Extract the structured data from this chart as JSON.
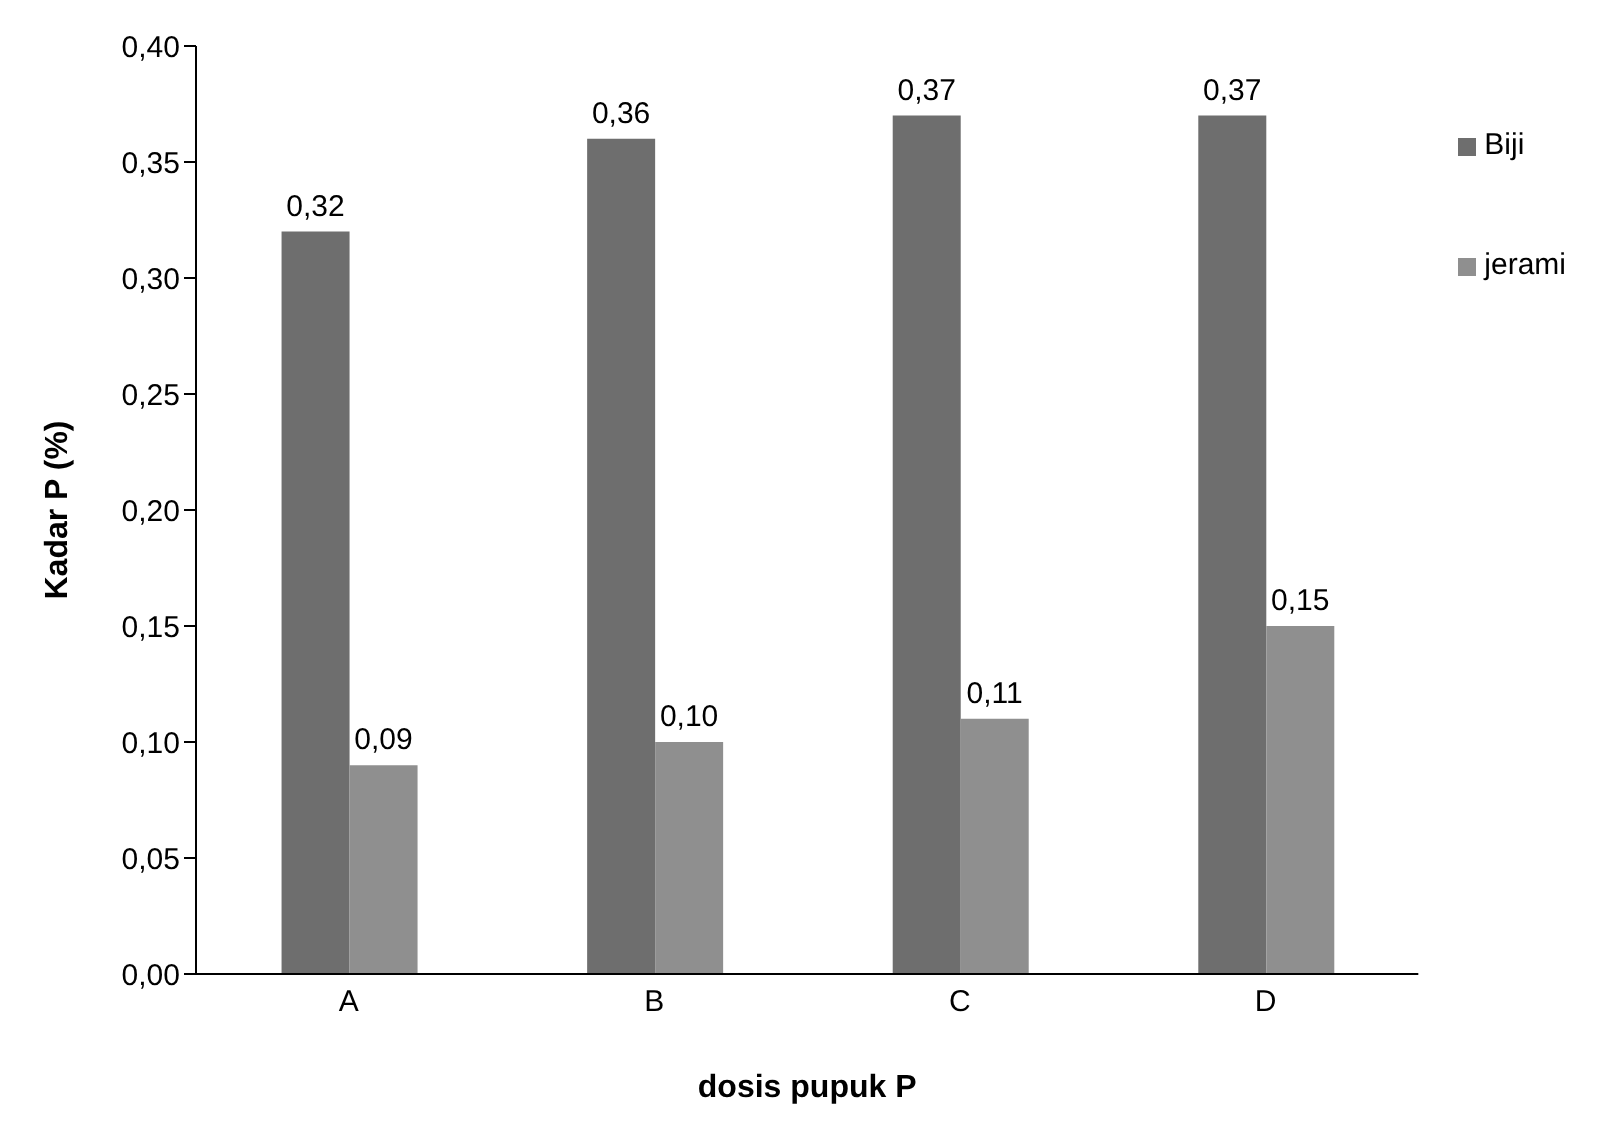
{
  "chart_data": {
    "type": "bar",
    "xlabel": "dosis pupuk P",
    "ylabel": "Kadar P (%)",
    "categories": [
      "A",
      "B",
      "C",
      "D"
    ],
    "series": [
      {
        "name": "Biji",
        "color": "#6e6e6e",
        "values": [
          0.32,
          0.36,
          0.37,
          0.37
        ],
        "value_labels": [
          "0,32",
          "0,36",
          "0,37",
          "0,37"
        ]
      },
      {
        "name": "jerami",
        "color": "#8f8f8f",
        "values": [
          0.09,
          0.1,
          0.11,
          0.15
        ],
        "value_labels": [
          "0,09",
          "0,10",
          "0,11",
          "0,15"
        ]
      }
    ],
    "ylim": [
      0,
      0.4
    ],
    "yticks": [
      {
        "value": 0,
        "label": "0,00"
      },
      {
        "value": 0.05,
        "label": "0,05"
      },
      {
        "value": 0.1,
        "label": "0,10"
      },
      {
        "value": 0.15,
        "label": "0,15"
      },
      {
        "value": 0.2,
        "label": "0,20"
      },
      {
        "value": 0.25,
        "label": "0,25"
      },
      {
        "value": 0.3,
        "label": "0,30"
      },
      {
        "value": 0.35,
        "label": "0,35"
      },
      {
        "value": 0.4,
        "label": "0,40"
      }
    ],
    "grid": false,
    "legend": "top right"
  }
}
